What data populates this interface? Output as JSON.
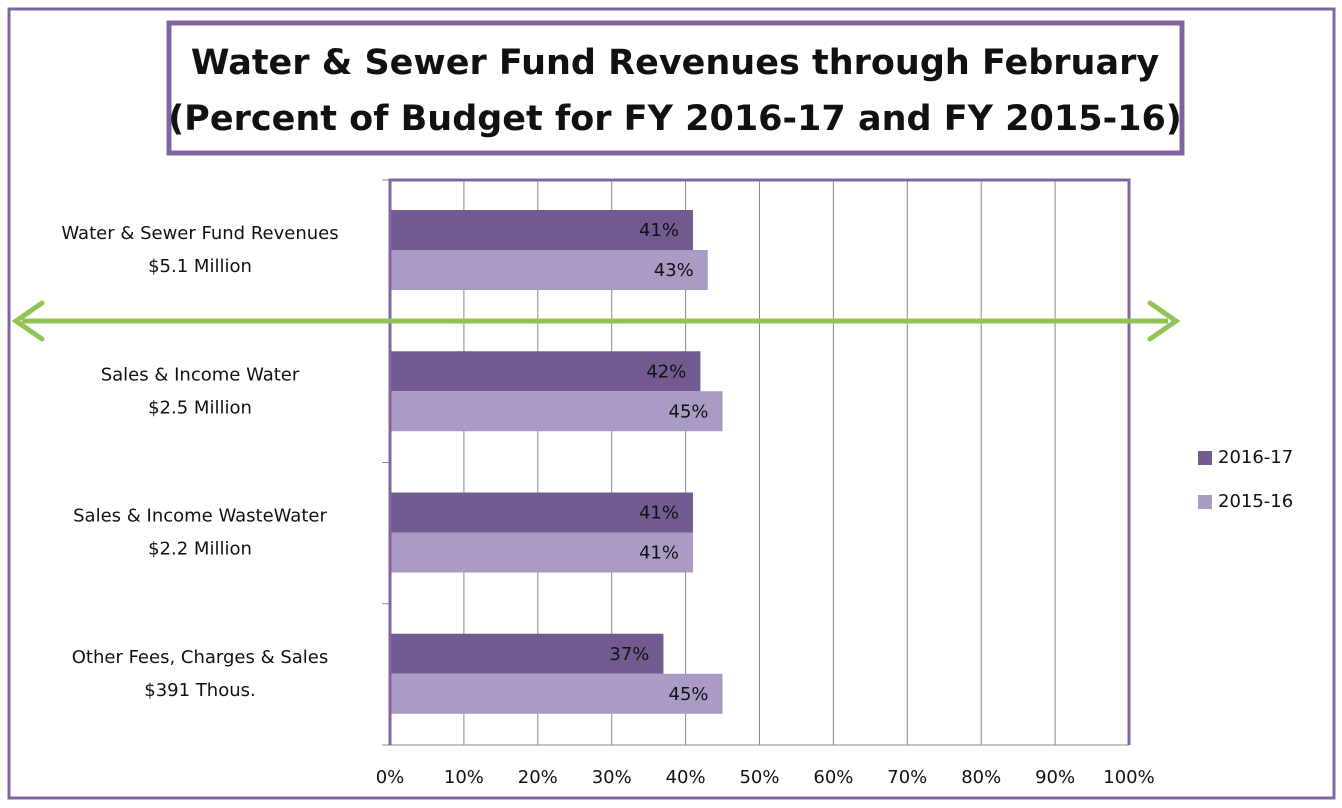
{
  "chart_data": {
    "type": "hbar",
    "title": [
      "Water & Sewer Fund Revenues through February",
      "(Percent of Budget for FY 2016-17 and FY 2015-16)"
    ],
    "categories": [
      [
        "Water & Sewer Fund Revenues",
        "$5.1 Million"
      ],
      [
        "Sales & Income Water",
        "$2.5 Million"
      ],
      [
        "Sales & Income WasteWater",
        "$2.2 Million"
      ],
      [
        "Other Fees, Charges & Sales",
        "$391 Thous."
      ]
    ],
    "series": [
      {
        "name": "2016-17",
        "color": "#725b91",
        "values": [
          41,
          42,
          41,
          37
        ],
        "value_labels": [
          "41%",
          "42%",
          "41%",
          "37%"
        ]
      },
      {
        "name": "2015-16",
        "color": "#a99bc3",
        "values": [
          43,
          45,
          41,
          45
        ],
        "value_labels": [
          "43%",
          "45%",
          "41%",
          "45%"
        ]
      }
    ],
    "xlim": [
      0,
      100
    ],
    "xticks": [
      {
        "value": 0,
        "label": "0%"
      },
      {
        "value": 10,
        "label": "10%"
      },
      {
        "value": 20,
        "label": "20%"
      },
      {
        "value": 30,
        "label": "30%"
      },
      {
        "value": 40,
        "label": "40%"
      },
      {
        "value": 50,
        "label": "50%"
      },
      {
        "value": 60,
        "label": "60%"
      },
      {
        "value": 70,
        "label": "70%"
      },
      {
        "value": 80,
        "label": "80%"
      },
      {
        "value": 90,
        "label": "90%"
      },
      {
        "value": 100,
        "label": "100%"
      }
    ],
    "grid": true,
    "legend": "right"
  }
}
